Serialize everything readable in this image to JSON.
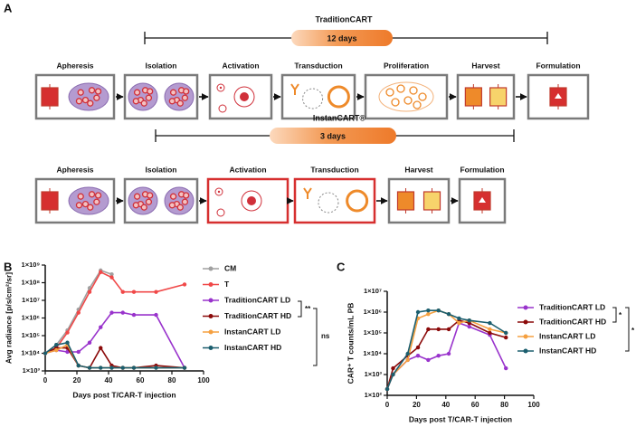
{
  "panel_labels": [
    "A",
    "B",
    "C"
  ],
  "diagram": {
    "rows": [
      {
        "title": "TraditionCART",
        "duration": "12 days",
        "steps": [
          "Apheresis",
          "Isolation",
          "Activation",
          "Transduction",
          "Proliferation",
          "Harvest",
          "Formulation"
        ]
      },
      {
        "title": "InstanCART®",
        "duration": "3 days",
        "steps": [
          "Apheresis",
          "Isolation",
          "Activation",
          "Transduction",
          "Harvest",
          "Formulation"
        ]
      }
    ]
  },
  "chart_data": [
    {
      "type": "line",
      "xlabel": "Days post T/CAR-T injection",
      "ylabel": "Avg radiance [p/s/cm²/sr]",
      "x": [
        0,
        7,
        14,
        21,
        28,
        35,
        42,
        49,
        56,
        70,
        88
      ],
      "xlim": [
        0,
        100
      ],
      "xticks": [
        0,
        20,
        40,
        60,
        80,
        100
      ],
      "log_y": true,
      "ylim": [
        1000,
        1000000000
      ],
      "yticks": [
        {
          "value": 1000,
          "label": "1×10³"
        },
        {
          "value": 10000,
          "label": "1×10⁴"
        },
        {
          "value": 100000,
          "label": "1×10⁵"
        },
        {
          "value": 1000000,
          "label": "1×10⁶"
        },
        {
          "value": 10000000,
          "label": "1×10⁷"
        },
        {
          "value": 100000000,
          "label": "1×10⁸"
        },
        {
          "value": 1000000000,
          "label": "1×10⁹"
        }
      ],
      "series": [
        {
          "name": "CM",
          "color": "#a0a0a0",
          "values": [
            10000,
            30000,
            200000,
            3000000,
            50000000,
            500000000,
            300000000,
            null,
            null,
            null,
            null
          ]
        },
        {
          "name": "T",
          "color": "#f04848",
          "values": [
            10000,
            20000,
            150000,
            2000000,
            30000000,
            400000000,
            200000000,
            30000000,
            30000000,
            30000000,
            80000000
          ]
        },
        {
          "name": "TraditionCART  LD",
          "color": "#9933cc",
          "values": [
            10000,
            15000,
            12000,
            12000,
            40000,
            300000,
            2000000,
            2000000,
            1500000,
            1500000,
            1500
          ]
        },
        {
          "name": "TraditionCART  HD",
          "color": "#8b0a0a",
          "values": [
            10000,
            20000,
            20000,
            2000,
            1500,
            20000,
            2000,
            1500,
            1500,
            2000,
            1500
          ]
        },
        {
          "name": "InstanCART LD",
          "color": "#f5a040",
          "values": [
            10000,
            15000,
            30000,
            2000,
            1500,
            1500,
            1500,
            1500,
            1500,
            1500,
            1500
          ]
        },
        {
          "name": "InstanCART HD",
          "color": "#1b5e6e",
          "values": [
            10000,
            30000,
            40000,
            2000,
            1500,
            1500,
            1500,
            1500,
            1500,
            1500,
            1500
          ]
        }
      ],
      "annotations": [
        "**",
        "ns"
      ]
    },
    {
      "type": "line",
      "xlabel": "Days post T/CAR-T injection",
      "ylabel": "CAR⁺ T counts/mL PB",
      "x": [
        0,
        4,
        14,
        21,
        28,
        35,
        42,
        49,
        56,
        70,
        81
      ],
      "xlim": [
        0,
        100
      ],
      "xticks": [
        0,
        20,
        40,
        60,
        80,
        100
      ],
      "log_y": true,
      "ylim": [
        100,
        10000000
      ],
      "yticks": [
        {
          "value": 100,
          "label": "1×10²"
        },
        {
          "value": 1000,
          "label": "1×10³"
        },
        {
          "value": 10000,
          "label": "1×10⁴"
        },
        {
          "value": 100000,
          "label": "1×10⁵"
        },
        {
          "value": 1000000,
          "label": "1×10⁶"
        },
        {
          "value": 10000000,
          "label": "1×10⁷"
        }
      ],
      "series": [
        {
          "name": "TraditionCART LD",
          "color": "#9933cc",
          "values": [
            200,
            1000,
            5000,
            8000,
            5000,
            8000,
            10000,
            300000,
            200000,
            80000,
            2000
          ]
        },
        {
          "name": "TraditionCART HD",
          "color": "#8b0a0a",
          "values": [
            200,
            2000,
            8000,
            20000,
            150000,
            150000,
            150000,
            400000,
            300000,
            100000,
            60000
          ]
        },
        {
          "name": "InstanCART LD",
          "color": "#f5a040",
          "values": [
            200,
            1000,
            5000,
            500000,
            800000,
            1200000,
            800000,
            300000,
            400000,
            150000,
            100000
          ]
        },
        {
          "name": "InstanCART HD",
          "color": "#1b5e6e",
          "values": [
            200,
            1000,
            10000,
            1000000,
            1200000,
            1200000,
            800000,
            500000,
            400000,
            300000,
            100000
          ]
        }
      ],
      "annotations": [
        "*",
        "*"
      ]
    }
  ]
}
